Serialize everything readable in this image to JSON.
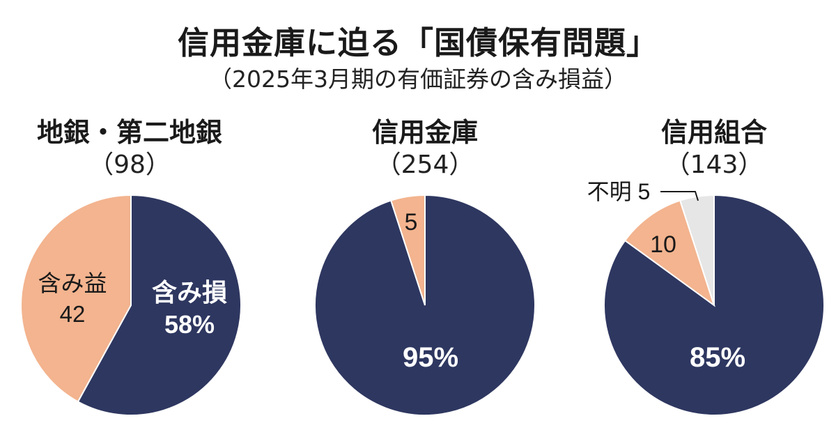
{
  "title": "信用金庫に迫る「国債保有問題」",
  "subtitle": "（2025年3月期の有価証券の含み損益）",
  "colors": {
    "loss": "#2e3760",
    "gain": "#f3b48f",
    "unknown": "#e6e6e6",
    "outline": "#ffffff"
  },
  "chart_data": [
    {
      "type": "pie",
      "category": "地銀・第二地銀",
      "count_label": "（98）",
      "slices": [
        {
          "name": "含み損",
          "value": 58,
          "label_lines": [
            "含み損",
            "58%"
          ],
          "color": "#2e3760"
        },
        {
          "name": "含み益",
          "value": 42,
          "label_lines": [
            "含み益",
            "42"
          ],
          "color": "#f3b48f"
        }
      ]
    },
    {
      "type": "pie",
      "category": "信用金庫",
      "count_label": "（254）",
      "slices": [
        {
          "name": "含み損",
          "value": 95,
          "label_lines": [
            "95%"
          ],
          "color": "#2e3760"
        },
        {
          "name": "含み益",
          "value": 5,
          "label_lines": [
            "5"
          ],
          "color": "#f3b48f"
        }
      ]
    },
    {
      "type": "pie",
      "category": "信用組合",
      "count_label": "（143）",
      "slices": [
        {
          "name": "含み損",
          "value": 85,
          "label_lines": [
            "85%"
          ],
          "color": "#2e3760"
        },
        {
          "name": "含み益",
          "value": 10,
          "label_lines": [
            "10"
          ],
          "color": "#f3b48f"
        },
        {
          "name": "不明",
          "value": 5,
          "label_lines": [
            "不明 5"
          ],
          "color": "#e6e6e6"
        }
      ]
    }
  ]
}
